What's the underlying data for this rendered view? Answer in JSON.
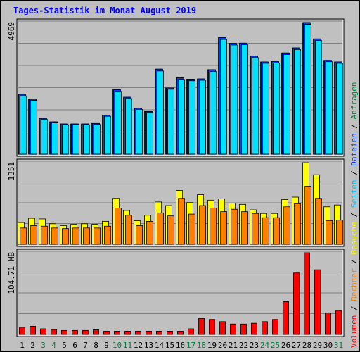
{
  "page": {
    "title": "Tages-Statistik im Monat August 2019",
    "right_legend": {
      "top": [
        {
          "text": "Anfragen",
          "color": "#008040"
        },
        {
          "text": " / ",
          "color": "#000000"
        },
        {
          "text": "Dateien",
          "color": "#0040ff"
        },
        {
          "text": " / ",
          "color": "#000000"
        },
        {
          "text": "Seiten",
          "color": "#00c0ff"
        },
        {
          "text": " / ",
          "color": "#000000"
        },
        {
          "text": "Besuche",
          "color": "#ffff00"
        },
        {
          "text": " / ",
          "color": "#000000"
        },
        {
          "text": "Rechner",
          "color": "#ff8000"
        },
        {
          "text": " / ",
          "color": "#000000"
        },
        {
          "text": "Volumen",
          "color": "#ff0000"
        }
      ]
    }
  },
  "colors": {
    "background": "#c0c0c0",
    "panel_bg": "#c0c0c0",
    "grid": "#808080",
    "anfragen": "#00805f",
    "dateien": "#0040ff",
    "seiten": "#00e0ff",
    "besuche": "#ffff00",
    "rechner": "#ff8000",
    "volumen": "#ff0000",
    "title": "#0000ff",
    "weekend_label": "#008040"
  },
  "chart_data": [
    {
      "type": "bar",
      "panel": "hits",
      "ymax_label": "4969",
      "ylim": [
        0,
        4969
      ],
      "categories": [
        "1",
        "2",
        "3",
        "4",
        "5",
        "6",
        "7",
        "8",
        "9",
        "10",
        "11",
        "12",
        "13",
        "14",
        "15",
        "16",
        "17",
        "18",
        "19",
        "20",
        "21",
        "22",
        "23",
        "24",
        "25",
        "26",
        "27",
        "28",
        "29",
        "30",
        "31"
      ],
      "series": [
        {
          "name": "Anfragen",
          "values": [
            2260,
            2080,
            1350,
            1220,
            1140,
            1140,
            1140,
            1160,
            1470,
            2430,
            2150,
            1730,
            1610,
            3210,
            2500,
            2880,
            2830,
            2840,
            3190,
            4400,
            4180,
            4190,
            3700,
            3480,
            3500,
            3820,
            4010,
            4969,
            4350,
            3540,
            3480
          ]
        },
        {
          "name": "Dateien",
          "values": [
            2260,
            2080,
            1350,
            1220,
            1140,
            1140,
            1140,
            1160,
            1470,
            2430,
            2150,
            1730,
            1610,
            3210,
            2500,
            2880,
            2830,
            2840,
            3190,
            4400,
            4180,
            4190,
            3700,
            3480,
            3500,
            3820,
            4010,
            4969,
            4350,
            3540,
            3480
          ]
        },
        {
          "name": "Seiten",
          "values": [
            2200,
            2030,
            1310,
            1180,
            1110,
            1110,
            1110,
            1120,
            1430,
            2370,
            2100,
            1690,
            1570,
            3140,
            2450,
            2820,
            2770,
            2790,
            3120,
            4330,
            4120,
            4130,
            3640,
            3430,
            3440,
            3760,
            3950,
            4900,
            4290,
            3490,
            3430
          ]
        }
      ]
    },
    {
      "type": "bar",
      "panel": "visits",
      "ymax_label": "1351",
      "ylim": [
        0,
        1351
      ],
      "categories": [
        "1",
        "2",
        "3",
        "4",
        "5",
        "6",
        "7",
        "8",
        "9",
        "10",
        "11",
        "12",
        "13",
        "14",
        "15",
        "16",
        "17",
        "18",
        "19",
        "20",
        "21",
        "22",
        "23",
        "24",
        "25",
        "26",
        "27",
        "28",
        "29",
        "30",
        "31"
      ],
      "series": [
        {
          "name": "Besuche",
          "values": [
            360,
            430,
            420,
            340,
            310,
            330,
            340,
            330,
            380,
            760,
            560,
            390,
            480,
            700,
            640,
            890,
            690,
            820,
            730,
            750,
            680,
            660,
            570,
            510,
            510,
            740,
            780,
            1351,
            1150,
            620,
            650
          ]
        },
        {
          "name": "Rechner",
          "values": [
            270,
            310,
            300,
            270,
            260,
            270,
            270,
            270,
            300,
            600,
            480,
            310,
            380,
            520,
            470,
            760,
            500,
            640,
            600,
            540,
            580,
            540,
            510,
            440,
            440,
            620,
            670,
            960,
            760,
            390,
            400
          ]
        }
      ]
    },
    {
      "type": "bar",
      "panel": "volume",
      "ymax_label": "104.71 MB",
      "ylim": [
        0,
        104.71
      ],
      "categories": [
        "1",
        "2",
        "3",
        "4",
        "5",
        "6",
        "7",
        "8",
        "9",
        "10",
        "11",
        "12",
        "13",
        "14",
        "15",
        "16",
        "17",
        "18",
        "19",
        "20",
        "21",
        "22",
        "23",
        "24",
        "25",
        "26",
        "27",
        "28",
        "29",
        "30",
        "31"
      ],
      "series": [
        {
          "name": "Volumen",
          "values": [
            9.2,
            10.5,
            7.2,
            6.2,
            5.1,
            5.1,
            5.1,
            5.9,
            4.1,
            4.1,
            4.1,
            4.1,
            4.1,
            4.1,
            4.1,
            4.1,
            7.2,
            20.5,
            19.2,
            16.4,
            13.3,
            13.3,
            14.3,
            16.4,
            19.2,
            42.0,
            78.8,
            104.71,
            82.9,
            27.6,
            30.7
          ]
        }
      ]
    }
  ],
  "x_axis": {
    "labels": [
      "1",
      "2",
      "3",
      "4",
      "5",
      "6",
      "7",
      "8",
      "9",
      "10",
      "11",
      "12",
      "13",
      "14",
      "15",
      "16",
      "17",
      "18",
      "19",
      "20",
      "21",
      "22",
      "23",
      "24",
      "25",
      "26",
      "27",
      "28",
      "29",
      "30",
      "31"
    ],
    "weekend_days": [
      "3",
      "4",
      "10",
      "11",
      "17",
      "18",
      "24",
      "25",
      "31"
    ]
  }
}
